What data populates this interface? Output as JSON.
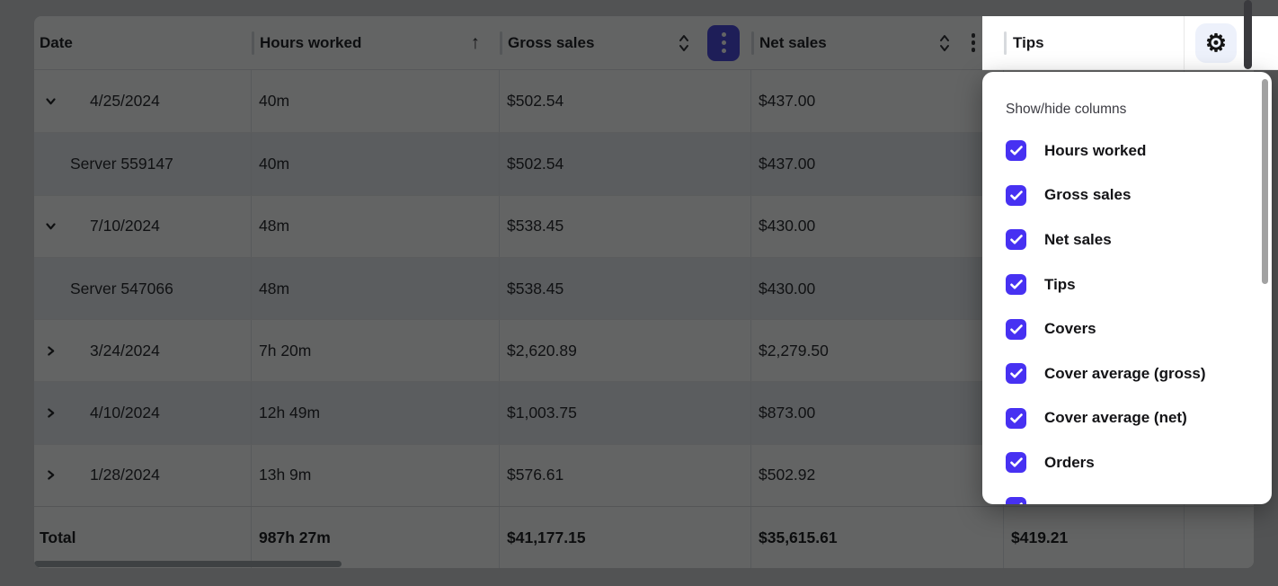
{
  "colors": {
    "accent_indigo": "#4642DE",
    "checkbox_indigo": "#4731F2",
    "gear_button_bg": "#EDF1FB"
  },
  "icons": {
    "gear": "⚙",
    "sort_ascending": "↑"
  },
  "table": {
    "columns": [
      {
        "label": "Date"
      },
      {
        "label": "Hours worked",
        "sort": "ascending"
      },
      {
        "label": "Gross sales",
        "sort": "unsorted",
        "menu": "active"
      },
      {
        "label": "Net sales",
        "sort": "unsorted",
        "menu": "default"
      },
      {
        "label": "Tips"
      }
    ],
    "rows": [
      {
        "type": "group",
        "expanded": true,
        "date": "4/25/2024",
        "hours": "40m",
        "gross": "$502.54",
        "net": "$437.00"
      },
      {
        "type": "child",
        "expanded": false,
        "date": "Server 559147",
        "hours": "40m",
        "gross": "$502.54",
        "net": "$437.00"
      },
      {
        "type": "group",
        "expanded": true,
        "date": "7/10/2024",
        "hours": "48m",
        "gross": "$538.45",
        "net": "$430.00"
      },
      {
        "type": "child",
        "expanded": false,
        "date": "Server 547066",
        "hours": "48m",
        "gross": "$538.45",
        "net": "$430.00"
      },
      {
        "type": "group",
        "expanded": false,
        "date": "3/24/2024",
        "hours": "7h 20m",
        "gross": "$2,620.89",
        "net": "$2,279.50"
      },
      {
        "type": "group",
        "expanded": false,
        "date": "4/10/2024",
        "hours": "12h 49m",
        "gross": "$1,003.75",
        "net": "$873.00"
      },
      {
        "type": "group",
        "expanded": false,
        "date": "1/28/2024",
        "hours": "13h 9m",
        "gross": "$576.61",
        "net": "$502.92"
      }
    ],
    "total": {
      "label": "Total",
      "hours": "987h 27m",
      "gross": "$41,177.15",
      "net": "$35,615.61",
      "tips": "$419.21"
    }
  },
  "popover": {
    "title": "Show/hide columns",
    "items": [
      {
        "label": "Hours worked",
        "checked": true
      },
      {
        "label": "Gross sales",
        "checked": true
      },
      {
        "label": "Net sales",
        "checked": true
      },
      {
        "label": "Tips",
        "checked": true
      },
      {
        "label": "Covers",
        "checked": true
      },
      {
        "label": "Cover average (gross)",
        "checked": true
      },
      {
        "label": "Cover average (net)",
        "checked": true
      },
      {
        "label": "Orders",
        "checked": true
      }
    ],
    "partial_item_visible": true
  }
}
